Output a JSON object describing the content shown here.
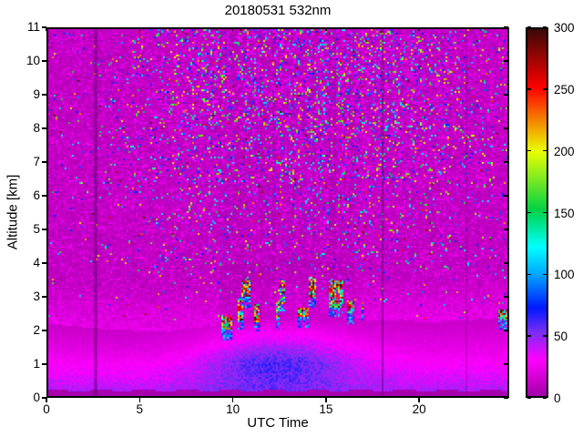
{
  "window": {
    "background": "#ffffff"
  },
  "chart_data": {
    "type": "heatmap",
    "title": "20180531 532nm",
    "xlabel": "UTC Time",
    "ylabel": "Altitude [km]",
    "xlim": [
      0,
      24.83
    ],
    "ylim": [
      0,
      11
    ],
    "clim": [
      0,
      300
    ],
    "xticks": [
      0,
      5,
      10,
      15,
      20
    ],
    "yticks": [
      0,
      1,
      2,
      3,
      4,
      5,
      6,
      7,
      8,
      9,
      10,
      11
    ],
    "colorbar_ticks": [
      0,
      50,
      100,
      150,
      200,
      250,
      300
    ],
    "legend_position": "right-colorbar",
    "grid": false,
    "colormap": [
      [
        0,
        "#a000a8"
      ],
      [
        12,
        "#c800c8"
      ],
      [
        30,
        "#ff00ff"
      ],
      [
        52,
        "#7b2df5"
      ],
      [
        72,
        "#0018ff"
      ],
      [
        100,
        "#00a8ff"
      ],
      [
        122,
        "#00ffff"
      ],
      [
        152,
        "#00d245"
      ],
      [
        200,
        "#eaff00"
      ],
      [
        252,
        "#ff0000"
      ],
      [
        300,
        "#3c0808"
      ]
    ],
    "features": {
      "background": {
        "base_value": 4,
        "speckle": 12
      },
      "day_noise": {
        "center_utc": 13,
        "sigma_h": 5.5,
        "max_prob": 0.3,
        "evening_center": 21.5,
        "evening_sigma": 3.5,
        "evening_prob": 0.06,
        "alt_start_km": 2.6,
        "alt_full_km": 8.6
      },
      "boundary_layer": {
        "top_km": [
          [
            0,
            2.2
          ],
          [
            3,
            2.05
          ],
          [
            6,
            1.95
          ],
          [
            9,
            2.15
          ],
          [
            12,
            2.55
          ],
          [
            14,
            2.6
          ],
          [
            16,
            2.35
          ],
          [
            18,
            2.3
          ],
          [
            21,
            2.25
          ],
          [
            24.83,
            2.4
          ]
        ],
        "midday_blue": {
          "center_utc": 12.3,
          "boost": 30
        }
      },
      "surface_band": {
        "top_km": 0.22
      },
      "clouds": [
        [
          9.35,
          9.95,
          2.0,
          2.45
        ],
        [
          10.25,
          10.6,
          2.3,
          3.0
        ],
        [
          10.5,
          10.95,
          3.0,
          3.5
        ],
        [
          11.15,
          11.45,
          2.25,
          2.8
        ],
        [
          12.3,
          12.55,
          2.35,
          2.9
        ],
        [
          12.5,
          12.8,
          2.8,
          3.5
        ],
        [
          13.5,
          14.05,
          2.4,
          2.7
        ],
        [
          14.1,
          14.5,
          2.95,
          3.6
        ],
        [
          15.2,
          15.9,
          2.7,
          3.5
        ],
        [
          16.15,
          16.5,
          2.5,
          2.9
        ],
        [
          16.9,
          17.05,
          2.6,
          2.85
        ],
        [
          24.25,
          24.7,
          2.3,
          2.6
        ]
      ],
      "attenuation": {
        "t0": 9.3,
        "t1": 16.6
      },
      "gap_lines": [
        {
          "utc": 2.64,
          "alpha": 0.5,
          "width": 3
        },
        {
          "utc": 18.05,
          "alpha": 0.42,
          "width": 2
        },
        {
          "utc": 22.55,
          "alpha": 0.2,
          "width": 2
        }
      ]
    }
  }
}
